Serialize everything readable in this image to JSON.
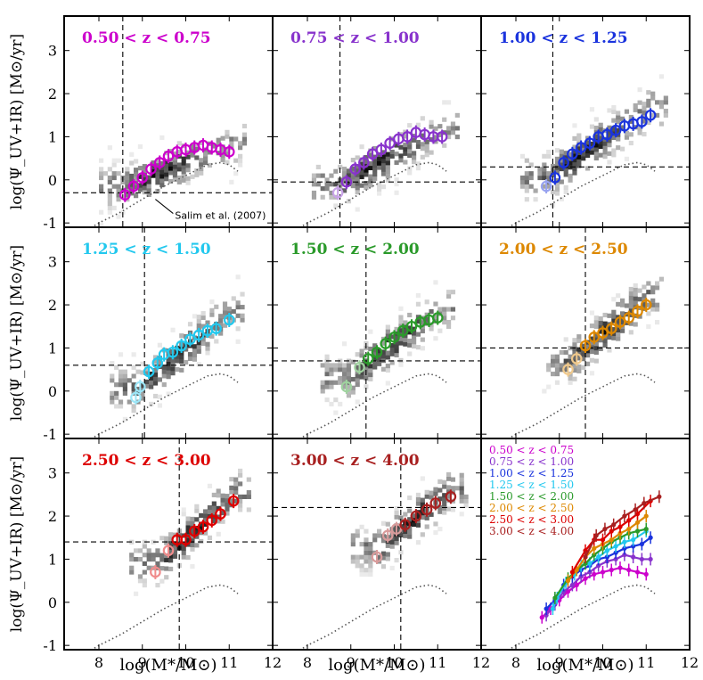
{
  "figure": {
    "ylabel": "log(Ψ_UV+IR) [M⊙/yr]",
    "xlabel": "log(M*/M⊙)",
    "salim_label": "Salim et al. (2007)"
  },
  "axes": {
    "xlim": [
      7.2,
      12
    ],
    "ylim": [
      -1.1,
      3.8
    ],
    "xticks": [
      "8",
      "9",
      "10",
      "11",
      "12"
    ],
    "yticks": [
      "-1",
      "0",
      "1",
      "2",
      "3"
    ],
    "grid": false
  },
  "chart_data": {
    "type": "scatter",
    "panels": [
      {
        "title": "0.50 < z < 0.75",
        "color": "#cc00cc",
        "mass_limit": 8.55,
        "sfr_limit": -0.3,
        "x": [
          8.6,
          8.8,
          9.0,
          9.2,
          9.4,
          9.6,
          9.8,
          10.0,
          10.2,
          10.4,
          10.6,
          10.8,
          11.0
        ],
        "y": [
          -0.35,
          -0.15,
          0.05,
          0.25,
          0.4,
          0.55,
          0.65,
          0.7,
          0.75,
          0.8,
          0.75,
          0.7,
          0.65
        ],
        "faint_points": 0
      },
      {
        "title": "0.75 < z < 1.00",
        "color": "#8833cc",
        "mass_limit": 8.75,
        "sfr_limit": -0.05,
        "x": [
          8.7,
          8.9,
          9.1,
          9.3,
          9.5,
          9.7,
          9.9,
          10.1,
          10.3,
          10.5,
          10.7,
          10.9,
          11.1
        ],
        "y": [
          -0.3,
          -0.05,
          0.25,
          0.4,
          0.6,
          0.7,
          0.85,
          0.95,
          1.0,
          1.1,
          1.05,
          1.0,
          1.0
        ],
        "faint_points": 1
      },
      {
        "title": "1.00 < z < 1.25",
        "color": "#1a33dd",
        "mass_limit": 8.85,
        "sfr_limit": 0.3,
        "x": [
          8.7,
          8.9,
          9.1,
          9.3,
          9.5,
          9.7,
          9.9,
          10.1,
          10.3,
          10.5,
          10.7,
          10.9,
          11.1
        ],
        "y": [
          -0.15,
          0.05,
          0.4,
          0.6,
          0.75,
          0.85,
          1.0,
          1.05,
          1.15,
          1.25,
          1.3,
          1.35,
          1.5
        ],
        "faint_points": 1
      },
      {
        "title": "1.25 < z < 1.50",
        "color": "#22c8ee",
        "mass_limit": 9.05,
        "sfr_limit": 0.6,
        "x": [
          8.85,
          8.95,
          9.15,
          9.35,
          9.5,
          9.7,
          9.9,
          10.1,
          10.3,
          10.5,
          10.7,
          11.0
        ],
        "y": [
          -0.15,
          0.1,
          0.45,
          0.65,
          0.85,
          0.9,
          1.05,
          1.2,
          1.3,
          1.4,
          1.45,
          1.65
        ],
        "faint_points": 2
      },
      {
        "title": "1.50 < z < 2.00",
        "color": "#2a9a2a",
        "mass_limit": 9.35,
        "sfr_limit": 0.7,
        "x": [
          8.9,
          9.2,
          9.4,
          9.6,
          9.8,
          10.0,
          10.2,
          10.4,
          10.6,
          10.8,
          11.0
        ],
        "y": [
          0.1,
          0.55,
          0.75,
          0.9,
          1.1,
          1.25,
          1.4,
          1.5,
          1.6,
          1.65,
          1.7
        ],
        "faint_points": 2
      },
      {
        "title": "2.00 < z < 2.50",
        "color": "#dd8800",
        "mass_limit": 9.6,
        "sfr_limit": 1.0,
        "x": [
          9.2,
          9.4,
          9.6,
          9.8,
          10.0,
          10.2,
          10.4,
          10.6,
          10.8,
          11.0
        ],
        "y": [
          0.5,
          0.75,
          1.05,
          1.25,
          1.35,
          1.45,
          1.6,
          1.7,
          1.85,
          2.0
        ],
        "faint_points": 2
      },
      {
        "title": "2.50 < z < 3.00",
        "color": "#dd0000",
        "mass_limit": 9.85,
        "sfr_limit": 1.4,
        "x": [
          9.3,
          9.6,
          9.8,
          10.0,
          10.2,
          10.4,
          10.6,
          10.8,
          11.1
        ],
        "y": [
          0.7,
          1.2,
          1.45,
          1.45,
          1.65,
          1.75,
          1.9,
          2.05,
          2.35
        ],
        "faint_points": 2
      },
      {
        "title": "3.00 < z < 4.00",
        "color": "#a82020",
        "mass_limit": 10.15,
        "sfr_limit": 2.2,
        "x": [
          9.6,
          9.85,
          10.05,
          10.25,
          10.5,
          10.75,
          10.95,
          11.3
        ],
        "y": [
          1.05,
          1.55,
          1.7,
          1.8,
          2.0,
          2.15,
          2.3,
          2.45
        ],
        "faint_points": 3
      }
    ],
    "salim_curve": {
      "x": [
        7.5,
        8.0,
        8.5,
        9.0,
        9.5,
        10.0,
        10.5,
        10.8,
        11.0,
        11.2
      ],
      "y": [
        -1.3,
        -1.0,
        -0.75,
        -0.45,
        -0.15,
        0.1,
        0.35,
        0.4,
        0.35,
        0.2
      ]
    },
    "summary_panel": {
      "legend": [
        "0.50 < z < 0.75",
        "0.75 < z < 1.00",
        "1.00 < z < 1.25",
        "1.25 < z < 1.50",
        "1.50 < z < 2.00",
        "2.00 < z < 2.50",
        "2.50 < z < 3.00",
        "3.00 < z < 4.00"
      ],
      "legend_placement": "top-left"
    }
  }
}
